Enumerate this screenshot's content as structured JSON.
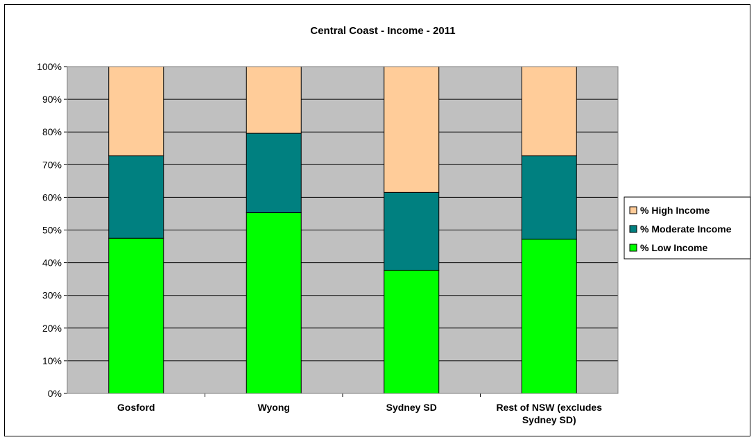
{
  "chart_data": {
    "type": "bar",
    "stacked": true,
    "percent_stacked": true,
    "title": "Central Coast - Income - 2011",
    "xlabel": "",
    "ylabel": "",
    "ylim": [
      0,
      100
    ],
    "y_ticks": [
      "0%",
      "10%",
      "20%",
      "30%",
      "40%",
      "50%",
      "60%",
      "70%",
      "80%",
      "90%",
      "100%"
    ],
    "categories": [
      [
        "Gosford"
      ],
      [
        "Wyong"
      ],
      [
        "Sydney SD"
      ],
      [
        "Rest of NSW (excludes",
        "Sydney SD)"
      ]
    ],
    "series": [
      {
        "name": "% Low Income",
        "color": "#00ff00",
        "values": [
          47.5,
          55.3,
          37.7,
          47.2
        ]
      },
      {
        "name": "% Moderate Income",
        "color": "#008080",
        "values": [
          25.2,
          24.3,
          23.8,
          25.5
        ]
      },
      {
        "name": "% High Income",
        "color": "#ffcc99",
        "values": [
          27.3,
          20.4,
          38.5,
          27.3
        ]
      }
    ],
    "legend": {
      "placement": "right",
      "order": [
        "% High Income",
        "% Moderate Income",
        "% Low Income"
      ]
    },
    "grid": true,
    "plot_background": "#c0c0c0"
  }
}
